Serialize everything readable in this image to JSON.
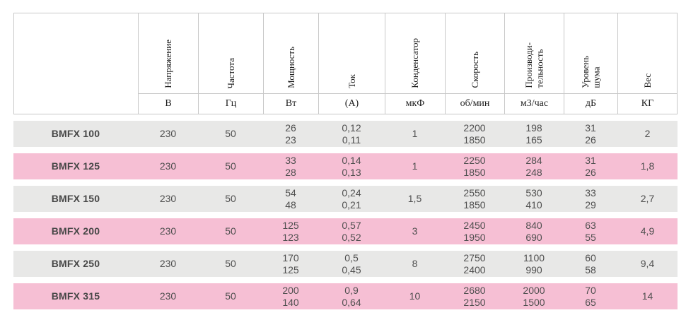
{
  "colors": {
    "row_gray": "#e8e8e7",
    "row_pink": "#f6bfd4",
    "border": "#c8c8c8",
    "text": "#4f4f4f"
  },
  "table": {
    "columns": [
      {
        "label": "",
        "unit": ""
      },
      {
        "label": "Напряжение",
        "unit": "В"
      },
      {
        "label": "Частота",
        "unit": "Гц"
      },
      {
        "label": "Мощность",
        "unit": "Вт"
      },
      {
        "label": "Ток",
        "unit": "(А)"
      },
      {
        "label": "Конденсатор",
        "unit": "мкФ"
      },
      {
        "label": "Скорость",
        "unit": "об/мин"
      },
      {
        "label": "Производи-\nтельность",
        "unit": "м3/час"
      },
      {
        "label": "Уровень\nшума",
        "unit": "дБ"
      },
      {
        "label": "Вес",
        "unit": "КГ"
      }
    ],
    "rows": [
      {
        "model": "BMFX 100",
        "highlight": false,
        "values": [
          "230",
          "50",
          "26\n23",
          "0,12\n0,11",
          "1",
          "2200\n1850",
          "198\n165",
          "31\n26",
          "2"
        ]
      },
      {
        "model": "BMFX 125",
        "highlight": true,
        "values": [
          "230",
          "50",
          "33\n28",
          "0,14\n0,13",
          "1",
          "2250\n1850",
          "284\n248",
          "31\n26",
          "1,8"
        ]
      },
      {
        "model": "BMFX 150",
        "highlight": false,
        "values": [
          "230",
          "50",
          "54\n48",
          "0,24\n0,21",
          "1,5",
          "2550\n1850",
          "530\n410",
          "33\n29",
          "2,7"
        ]
      },
      {
        "model": "BMFX 200",
        "highlight": true,
        "values": [
          "230",
          "50",
          "125\n123",
          "0,57\n0,52",
          "3",
          "2450\n1950",
          "840\n690",
          "63\n55",
          "4,9"
        ]
      },
      {
        "model": "BMFX 250",
        "highlight": false,
        "values": [
          "230",
          "50",
          "170\n125",
          "0,5\n0,45",
          "8",
          "2750\n2400",
          "1100\n990",
          "60\n58",
          "9,4"
        ]
      },
      {
        "model": "BMFX 315",
        "highlight": true,
        "values": [
          "230",
          "50",
          "200\n140",
          "0,9\n0,64",
          "10",
          "2680\n2150",
          "2000\n1500",
          "70\n65",
          "14"
        ]
      }
    ]
  }
}
